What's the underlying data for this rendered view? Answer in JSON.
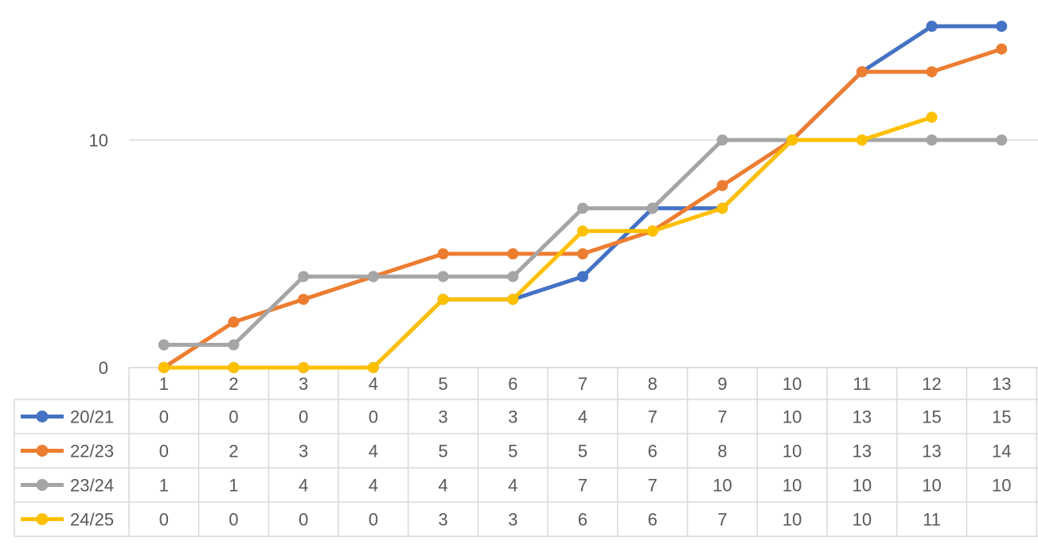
{
  "chart_data": {
    "type": "line",
    "categories": [
      "1",
      "2",
      "3",
      "4",
      "5",
      "6",
      "7",
      "8",
      "9",
      "10",
      "11",
      "12",
      "13"
    ],
    "y_ticks": [
      "0",
      "10"
    ],
    "ylim": [
      0,
      15.5
    ],
    "grid": true,
    "legend": "data-table",
    "series": [
      {
        "name": "20/21",
        "color": "#4472C4",
        "values": [
          0,
          0,
          0,
          0,
          3,
          3,
          4,
          7,
          7,
          10,
          13,
          15,
          15
        ]
      },
      {
        "name": "22/23",
        "color": "#ED7D31",
        "values": [
          0,
          2,
          3,
          4,
          5,
          5,
          5,
          6,
          8,
          10,
          13,
          13,
          14
        ]
      },
      {
        "name": "23/24",
        "color": "#A5A5A5",
        "values": [
          1,
          1,
          4,
          4,
          4,
          4,
          7,
          7,
          10,
          10,
          10,
          10,
          10
        ]
      },
      {
        "name": "24/25",
        "color": "#FFC000",
        "values": [
          0,
          0,
          0,
          0,
          3,
          3,
          6,
          6,
          7,
          10,
          10,
          11,
          null
        ]
      }
    ]
  }
}
